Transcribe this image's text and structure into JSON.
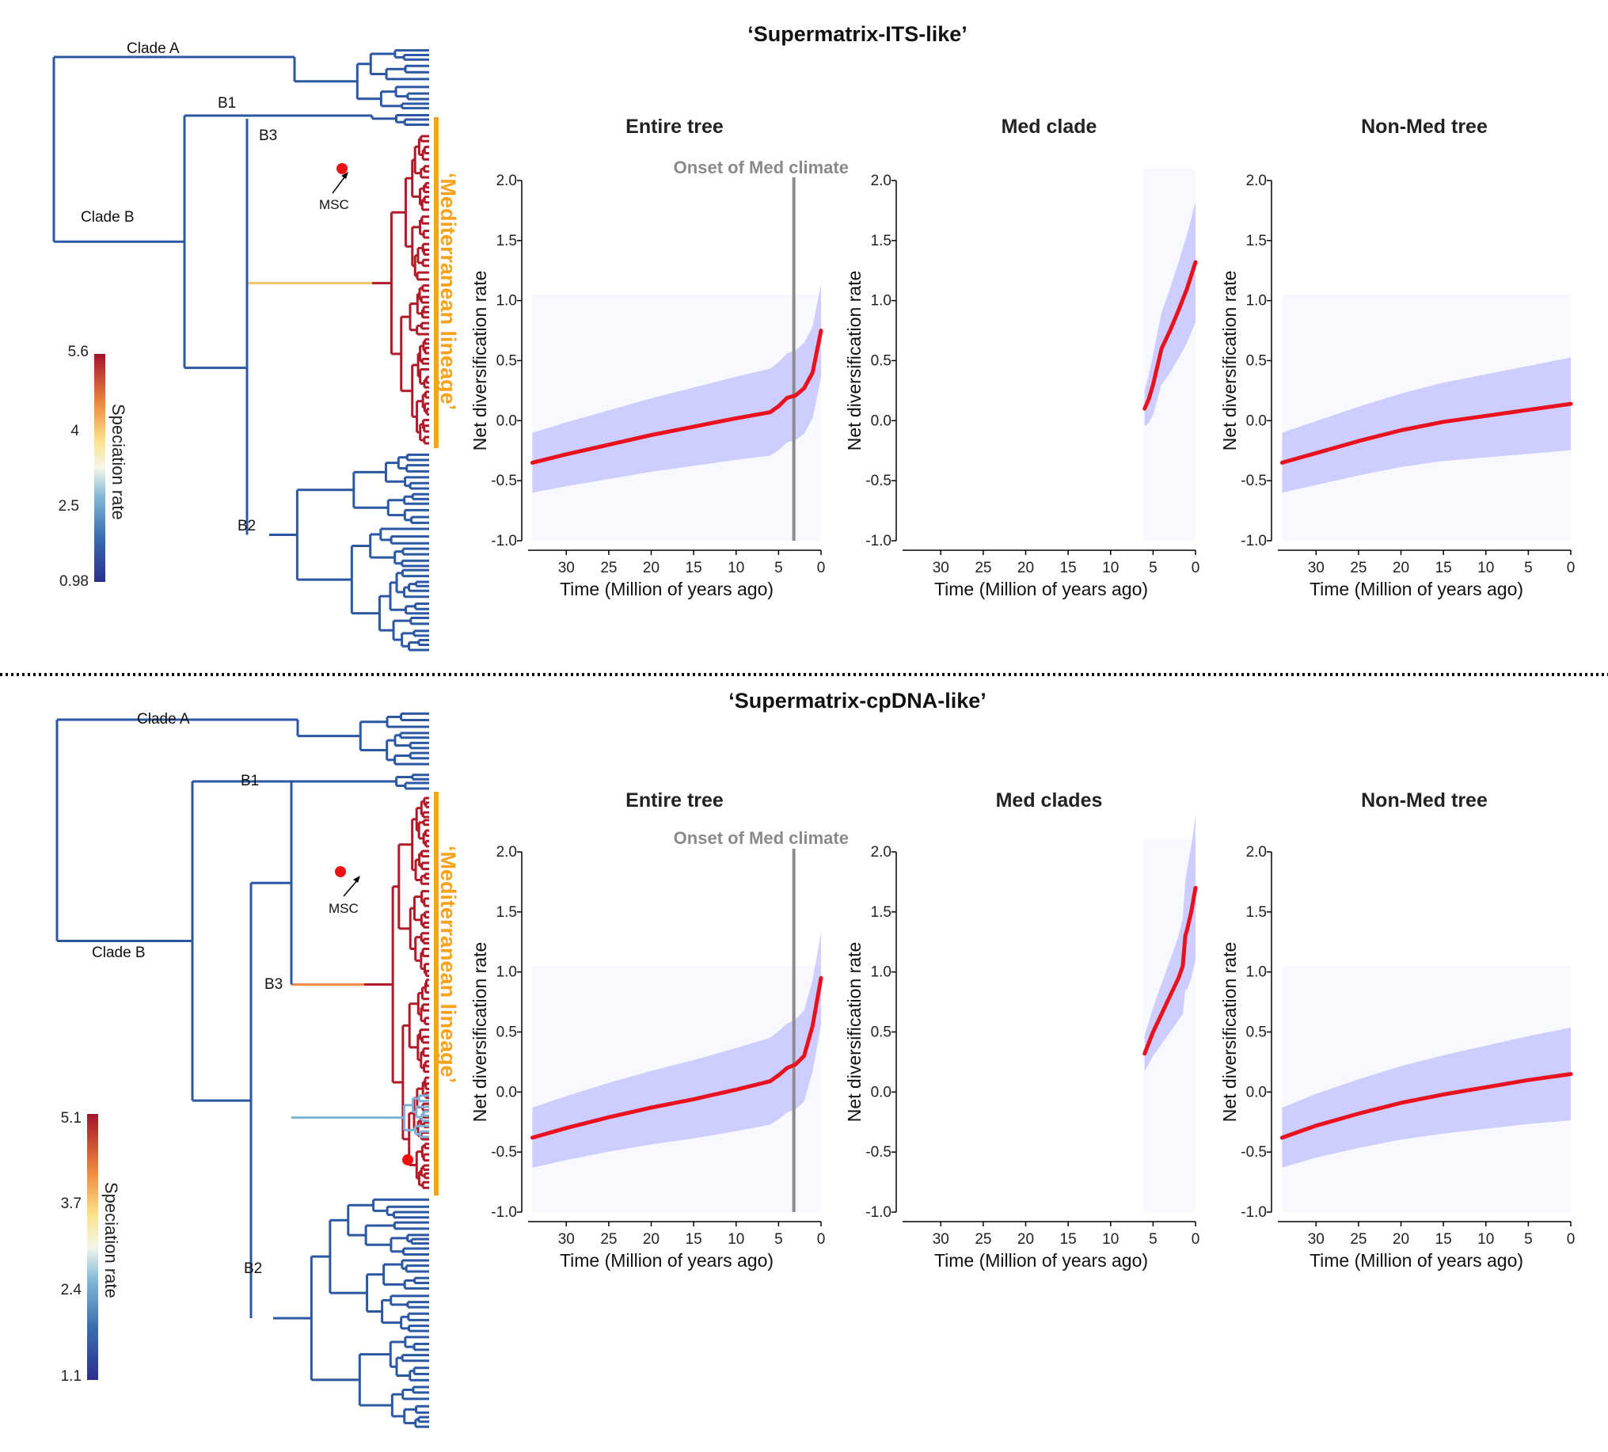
{
  "sections": [
    {
      "title": "‘Supermatrix-ITS-like’",
      "tree": {
        "clade_labels": [
          "Clade A",
          "B1",
          "B3",
          "Clade B",
          "B2"
        ],
        "msc_label": "MSC",
        "lineage_label": "‘Mediterranean lineage’",
        "colorbar": {
          "title": "Speciation rate",
          "ticks": [
            "5.6",
            "4",
            "2.5",
            "0.98"
          ]
        }
      },
      "panels": [
        {
          "title": "Entire tree",
          "onset_label": "Onset of Med climate"
        },
        {
          "title": "Med clade"
        },
        {
          "title": "Non-Med tree"
        }
      ]
    },
    {
      "title": "‘Supermatrix-cpDNA-like’",
      "tree": {
        "clade_labels": [
          "Clade A",
          "B1",
          "Clade B",
          "B3",
          "B2"
        ],
        "msc_label": "MSC",
        "lineage_label": "‘Mediterranean lineage’",
        "colorbar": {
          "title": "Speciation rate",
          "ticks": [
            "5.1",
            "3.7",
            "2.4",
            "1.1"
          ]
        }
      },
      "panels": [
        {
          "title": "Entire tree",
          "onset_label": "Onset of Med climate"
        },
        {
          "title": "Med clades"
        },
        {
          "title": "Non-Med tree"
        }
      ]
    }
  ],
  "axes": {
    "ylabel": "Net diversification rate",
    "xlabel": "Time (Million of years ago)",
    "y_ticks": [
      "2.0",
      "1.5",
      "1.0",
      "0.5",
      "0.0",
      "-0.5",
      "-1.0"
    ],
    "x_ticks": [
      "30",
      "25",
      "20",
      "15",
      "10",
      "5",
      "0"
    ]
  },
  "chart_data": [
    {
      "type": "line",
      "title": "Entire tree",
      "section": "‘Supermatrix-ITS-like’",
      "xlabel": "Time (Million of years ago)",
      "ylabel": "Net diversification rate",
      "xlim": [
        34.5,
        0
      ],
      "ylim": [
        -1.0,
        2.0
      ],
      "onset_line_x": 3.2,
      "x": [
        34,
        30,
        25,
        20,
        15,
        10,
        6,
        5,
        4,
        3,
        2,
        1,
        0
      ],
      "values": [
        -0.35,
        -0.28,
        -0.2,
        -0.12,
        -0.05,
        0.02,
        0.07,
        0.12,
        0.19,
        0.21,
        0.27,
        0.4,
        0.75
      ]
    },
    {
      "type": "line",
      "title": "Med clade",
      "section": "‘Supermatrix-ITS-like’",
      "xlabel": "Time (Million of years ago)",
      "ylabel": "Net diversification rate",
      "xlim": [
        34.5,
        0
      ],
      "ylim": [
        -1.0,
        2.0
      ],
      "x": [
        6,
        5.5,
        5,
        4,
        3,
        2,
        1,
        0
      ],
      "values": [
        0.1,
        0.18,
        0.3,
        0.6,
        0.75,
        0.92,
        1.1,
        1.32
      ]
    },
    {
      "type": "line",
      "title": "Non-Med tree",
      "section": "‘Supermatrix-ITS-like’",
      "xlabel": "Time (Million of years ago)",
      "ylabel": "Net diversification rate",
      "xlim": [
        34.5,
        0
      ],
      "ylim": [
        -1.0,
        2.0
      ],
      "x": [
        34,
        30,
        25,
        20,
        15,
        10,
        5,
        0
      ],
      "values": [
        -0.35,
        -0.27,
        -0.17,
        -0.08,
        -0.01,
        0.04,
        0.09,
        0.14
      ]
    },
    {
      "type": "line",
      "title": "Entire tree",
      "section": "‘Supermatrix-cpDNA-like’",
      "xlabel": "Time (Million of years ago)",
      "ylabel": "Net diversification rate",
      "xlim": [
        34.5,
        0
      ],
      "ylim": [
        -1.0,
        2.0
      ],
      "onset_line_x": 3.2,
      "x": [
        34,
        30,
        25,
        20,
        15,
        10,
        6,
        5,
        4,
        3,
        2,
        1,
        0
      ],
      "values": [
        -0.38,
        -0.3,
        -0.21,
        -0.13,
        -0.06,
        0.02,
        0.09,
        0.14,
        0.2,
        0.23,
        0.3,
        0.55,
        0.95
      ]
    },
    {
      "type": "line",
      "title": "Med clades",
      "section": "‘Supermatrix-cpDNA-like’",
      "xlabel": "Time (Million of years ago)",
      "ylabel": "Net diversification rate",
      "xlim": [
        34.5,
        0
      ],
      "ylim": [
        -1.0,
        2.0
      ],
      "x": [
        6,
        5,
        4,
        3,
        2,
        1.5,
        1.2,
        1,
        0.5,
        0
      ],
      "values": [
        0.32,
        0.5,
        0.65,
        0.8,
        0.95,
        1.05,
        1.3,
        1.35,
        1.5,
        1.7
      ]
    },
    {
      "type": "line",
      "title": "Non-Med tree",
      "section": "‘Supermatrix-cpDNA-like’",
      "xlabel": "Time (Million of years ago)",
      "ylabel": "Net diversification rate",
      "xlim": [
        34.5,
        0
      ],
      "ylim": [
        -1.0,
        2.0
      ],
      "x": [
        34,
        30,
        25,
        20,
        15,
        10,
        5,
        0
      ],
      "values": [
        -0.38,
        -0.28,
        -0.18,
        -0.09,
        -0.02,
        0.04,
        0.1,
        0.15
      ]
    }
  ],
  "colors": {
    "mean_line": "#e8111d",
    "ribbon": "#3838ff",
    "onset_line": "#8c8c8c",
    "lineage_bar": "#f7a21b",
    "branch_slow": "#2c57a3",
    "branch_mid": "#7fb2d5",
    "branch_fast": "#b21928",
    "shift_marker": "#ee1111"
  }
}
